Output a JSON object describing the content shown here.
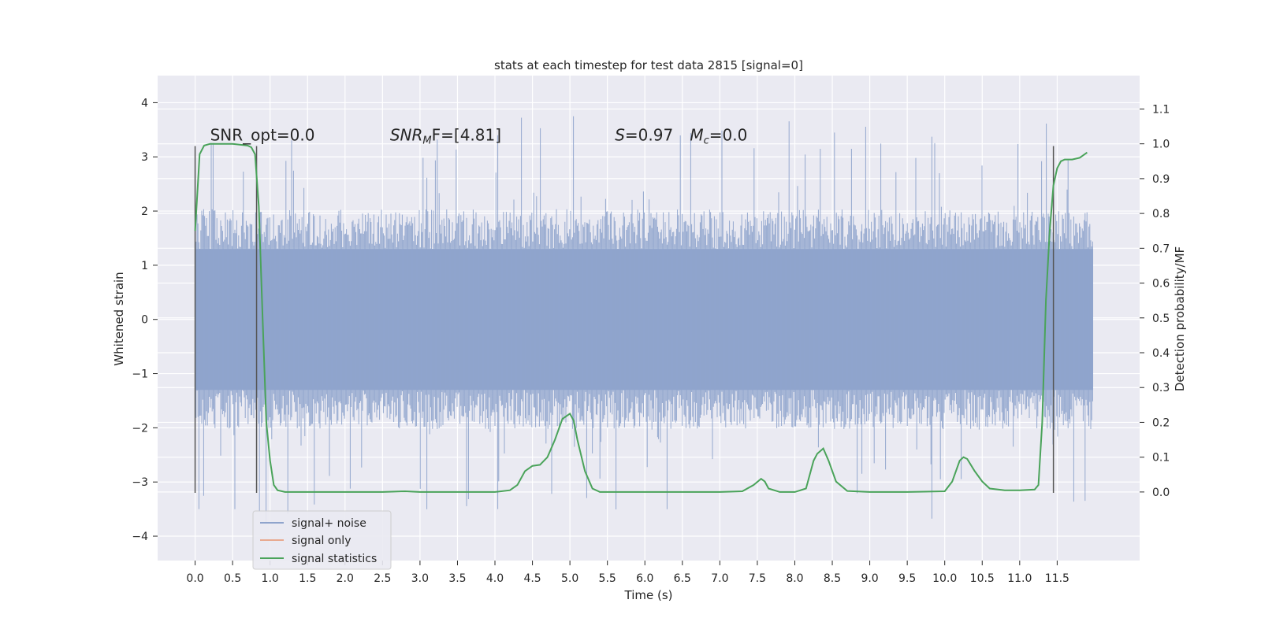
{
  "chart_data": {
    "type": "line",
    "title": "stats at each timestep for test data 2815 [signal=0]",
    "xlabel": "Time (s)",
    "ylabel": "Whitened strain",
    "y2label": "Detection probability/MF",
    "xlim": [
      -0.5,
      12.6
    ],
    "ylim": [
      -4.45,
      4.5
    ],
    "y2lim": [
      -0.197,
      1.196
    ],
    "x_ticks": [
      0.0,
      0.5,
      1.0,
      1.5,
      2.0,
      2.5,
      3.0,
      3.5,
      4.0,
      4.5,
      5.0,
      5.5,
      6.0,
      6.5,
      7.0,
      7.5,
      8.0,
      8.5,
      9.0,
      9.5,
      10.0,
      10.5,
      11.0,
      11.5
    ],
    "x_tick_labels": [
      "0.0",
      "0.5",
      "1.0",
      "1.5",
      "2.0",
      "2.5",
      "3.0",
      "3.5",
      "4.0",
      "4.5",
      "5.0",
      "5.5",
      "6.0",
      "6.5",
      "7.0",
      "7.5",
      "8.0",
      "8.5",
      "9.0",
      "9.5",
      "10.0",
      "10.5",
      "11.0",
      "11.5"
    ],
    "y_ticks": [
      4,
      3,
      2,
      1,
      0,
      -1,
      -2,
      -3,
      -4
    ],
    "y_tick_labels": [
      "4",
      "3",
      "2",
      "1",
      "0",
      "−1",
      "−2",
      "−3",
      "−4"
    ],
    "y2_ticks": [
      1.1,
      1.0,
      0.9,
      0.8,
      0.7,
      0.6,
      0.5,
      0.4,
      0.3,
      0.2,
      0.1,
      0.0
    ],
    "y2_tick_labels": [
      "1.1",
      "1.0",
      "0.9",
      "0.8",
      "0.7",
      "0.6",
      "0.5",
      "0.4",
      "0.3",
      "0.2",
      "0.1",
      "0.0"
    ],
    "grid": true,
    "legend_position": "lower-left",
    "annotations": [
      {
        "text": "SNR_opt=0.0",
        "x": 0.2,
        "y": 3.3
      },
      {
        "text": "SNR",
        "sub": "M",
        "rest": "F=[4.81]",
        "x": 2.6,
        "y": 3.3
      },
      {
        "text": "S",
        "rest": "=0.97",
        "x": 5.6,
        "y": 3.3
      },
      {
        "text": "M",
        "sub": "c",
        "rest": "=0.0",
        "x": 6.6,
        "y": 3.3
      }
    ],
    "vertical_markers": [
      {
        "x": 0.0,
        "ymin": -3.2,
        "ymax": 3.2
      },
      {
        "x": 0.82,
        "ymin": -3.2,
        "ymax": 3.2
      },
      {
        "x": 11.45,
        "ymin": -3.2,
        "ymax": 3.2
      }
    ],
    "noise_series": {
      "name": "signal+ noise",
      "color": "#8fa4cc",
      "x_start": 0.0,
      "x_end": 11.98,
      "core_amplitude": 1.3,
      "typical_peak": 2.0,
      "max": 4.1,
      "min": -4.1
    },
    "series": [
      {
        "name": "signal+ noise",
        "color": "#8fa4cc"
      },
      {
        "name": "signal only",
        "color": "#e8a98f"
      },
      {
        "name": "signal statistics",
        "color": "#4aa35a",
        "axis": "right",
        "x": [
          0.0,
          0.06,
          0.12,
          0.2,
          0.3,
          0.5,
          0.7,
          0.75,
          0.8,
          0.85,
          0.9,
          0.95,
          1.0,
          1.05,
          1.1,
          1.2,
          1.5,
          2.0,
          2.5,
          2.8,
          3.0,
          3.5,
          4.0,
          4.2,
          4.3,
          4.4,
          4.5,
          4.6,
          4.7,
          4.8,
          4.9,
          5.0,
          5.05,
          5.1,
          5.2,
          5.3,
          5.4,
          5.5,
          6.0,
          6.5,
          7.0,
          7.3,
          7.45,
          7.55,
          7.6,
          7.65,
          7.8,
          8.0,
          8.15,
          8.25,
          8.3,
          8.38,
          8.45,
          8.55,
          8.7,
          9.0,
          9.5,
          10.0,
          10.1,
          10.2,
          10.25,
          10.3,
          10.4,
          10.5,
          10.6,
          10.8,
          11.0,
          11.2,
          11.25,
          11.3,
          11.35,
          11.4,
          11.45,
          11.5,
          11.55,
          11.6,
          11.7,
          11.8,
          11.9
        ],
        "y": [
          0.75,
          0.97,
          0.995,
          1.0,
          1.0,
          1.0,
          0.995,
          0.99,
          0.97,
          0.82,
          0.5,
          0.2,
          0.09,
          0.02,
          0.005,
          0.0,
          0.0,
          0.0,
          0.0,
          0.002,
          0.0,
          0.0,
          0.0,
          0.005,
          0.02,
          0.06,
          0.075,
          0.078,
          0.1,
          0.15,
          0.21,
          0.225,
          0.205,
          0.15,
          0.06,
          0.01,
          0.0,
          0.0,
          0.0,
          0.0,
          0.0,
          0.002,
          0.02,
          0.038,
          0.03,
          0.01,
          0.0,
          0.0,
          0.01,
          0.09,
          0.11,
          0.125,
          0.09,
          0.03,
          0.003,
          0.0,
          0.0,
          0.002,
          0.03,
          0.09,
          0.1,
          0.095,
          0.06,
          0.03,
          0.01,
          0.005,
          0.005,
          0.007,
          0.02,
          0.2,
          0.55,
          0.75,
          0.88,
          0.93,
          0.95,
          0.955,
          0.955,
          0.96,
          0.975
        ]
      }
    ]
  }
}
